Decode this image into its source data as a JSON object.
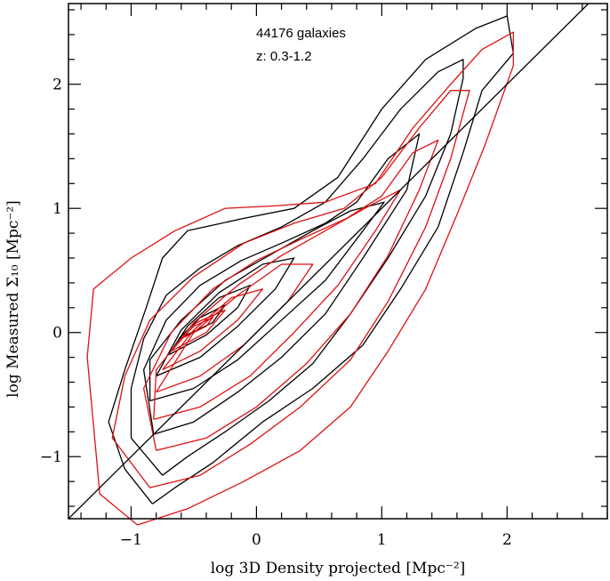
{
  "chart_data": {
    "type": "contour",
    "title": "",
    "xlabel": "log 3D Density projected [Mpc⁻²]",
    "ylabel": "log Measured Σ₁₀ [Mpc⁻²]",
    "xlim": [
      -1.5,
      2.8
    ],
    "ylim": [
      -1.5,
      2.65
    ],
    "x_ticks": [
      -1,
      0,
      1,
      2
    ],
    "y_ticks": [
      -1,
      0,
      1,
      2
    ],
    "x_tick_labels": [
      "−1",
      "0",
      "1",
      "2"
    ],
    "y_tick_labels": [
      "−1",
      "0",
      "1",
      "2"
    ],
    "annotations": [
      "44176 galaxies",
      "z: 0.3-1.2"
    ],
    "reference_line": {
      "name": "one-to-one",
      "points": [
        [
          -1.5,
          -1.5
        ],
        [
          2.8,
          2.8
        ]
      ],
      "color": "#000000"
    },
    "colors": {
      "black": "#000000",
      "red": "#dd1111"
    },
    "series": [
      {
        "name": "black level 1",
        "color": "#000000",
        "points": [
          [
            -0.83,
            -1.38
          ],
          [
            -0.65,
            -1.25
          ],
          [
            -0.35,
            -1.05
          ],
          [
            0.05,
            -0.72
          ],
          [
            0.45,
            -0.45
          ],
          [
            0.85,
            -0.1
          ],
          [
            1.15,
            0.35
          ],
          [
            1.45,
            0.85
          ],
          [
            1.65,
            1.45
          ],
          [
            1.8,
            1.95
          ],
          [
            2.05,
            2.25
          ],
          [
            2.0,
            2.55
          ],
          [
            1.75,
            2.45
          ],
          [
            1.35,
            2.2
          ],
          [
            1.0,
            1.8
          ],
          [
            0.65,
            1.25
          ],
          [
            0.3,
            1.0
          ],
          [
            -0.1,
            0.92
          ],
          [
            -0.55,
            0.82
          ],
          [
            -0.75,
            0.6
          ],
          [
            -0.88,
            0.2
          ],
          [
            -1.05,
            -0.3
          ],
          [
            -1.18,
            -0.72
          ],
          [
            -1.05,
            -1.1
          ],
          [
            -0.83,
            -1.38
          ]
        ]
      },
      {
        "name": "black level 2",
        "color": "#000000",
        "points": [
          [
            -0.75,
            -1.15
          ],
          [
            -0.55,
            -1.0
          ],
          [
            -0.25,
            -0.8
          ],
          [
            0.1,
            -0.55
          ],
          [
            0.45,
            -0.25
          ],
          [
            0.75,
            0.15
          ],
          [
            1.05,
            0.6
          ],
          [
            1.35,
            1.1
          ],
          [
            1.55,
            1.6
          ],
          [
            1.65,
            2.05
          ],
          [
            1.65,
            2.2
          ],
          [
            1.45,
            2.1
          ],
          [
            1.15,
            1.8
          ],
          [
            0.85,
            1.4
          ],
          [
            0.55,
            1.05
          ],
          [
            0.2,
            0.85
          ],
          [
            -0.15,
            0.7
          ],
          [
            -0.45,
            0.52
          ],
          [
            -0.72,
            0.3
          ],
          [
            -0.9,
            -0.05
          ],
          [
            -1.0,
            -0.45
          ],
          [
            -1.0,
            -0.85
          ],
          [
            -0.75,
            -1.15
          ]
        ]
      },
      {
        "name": "black level 3",
        "color": "#000000",
        "points": [
          [
            -0.82,
            -0.82
          ],
          [
            -0.5,
            -0.72
          ],
          [
            -0.15,
            -0.48
          ],
          [
            0.2,
            -0.2
          ],
          [
            0.55,
            0.15
          ],
          [
            0.85,
            0.6
          ],
          [
            1.2,
            1.15
          ],
          [
            1.3,
            1.6
          ],
          [
            1.05,
            1.4
          ],
          [
            0.8,
            1.05
          ],
          [
            0.55,
            0.88
          ],
          [
            0.2,
            0.72
          ],
          [
            -0.12,
            0.58
          ],
          [
            -0.45,
            0.38
          ],
          [
            -0.72,
            0.1
          ],
          [
            -0.9,
            -0.3
          ],
          [
            -0.82,
            -0.82
          ]
        ]
      },
      {
        "name": "black level 4",
        "color": "#000000",
        "points": [
          [
            -0.85,
            -0.55
          ],
          [
            -0.5,
            -0.45
          ],
          [
            -0.15,
            -0.22
          ],
          [
            0.2,
            0.1
          ],
          [
            0.55,
            0.42
          ],
          [
            0.85,
            0.82
          ],
          [
            1.02,
            1.05
          ],
          [
            0.75,
            0.98
          ],
          [
            0.45,
            0.82
          ],
          [
            0.1,
            0.62
          ],
          [
            -0.25,
            0.42
          ],
          [
            -0.6,
            0.1
          ],
          [
            -0.85,
            -0.22
          ],
          [
            -0.85,
            -0.55
          ]
        ]
      },
      {
        "name": "black level 5",
        "color": "#000000",
        "points": [
          [
            -0.8,
            -0.35
          ],
          [
            -0.45,
            -0.2
          ],
          [
            -0.15,
            0.05
          ],
          [
            0.15,
            0.35
          ],
          [
            0.3,
            0.6
          ],
          [
            0.05,
            0.55
          ],
          [
            -0.3,
            0.32
          ],
          [
            -0.6,
            0.02
          ],
          [
            -0.8,
            -0.35
          ]
        ]
      },
      {
        "name": "black level 6",
        "color": "#000000",
        "points": [
          [
            -0.7,
            -0.18
          ],
          [
            -0.4,
            -0.02
          ],
          [
            -0.15,
            0.2
          ],
          [
            -0.05,
            0.38
          ],
          [
            -0.3,
            0.28
          ],
          [
            -0.55,
            0.05
          ],
          [
            -0.7,
            -0.18
          ]
        ]
      },
      {
        "name": "black level 7",
        "color": "#000000",
        "points": [
          [
            -0.62,
            -0.05
          ],
          [
            -0.35,
            0.08
          ],
          [
            -0.25,
            0.22
          ],
          [
            -0.45,
            0.12
          ],
          [
            -0.62,
            -0.05
          ]
        ]
      },
      {
        "name": "red level 1",
        "color": "#dd1111",
        "points": [
          [
            -0.95,
            -1.55
          ],
          [
            -0.55,
            -1.42
          ],
          [
            -0.1,
            -1.2
          ],
          [
            0.35,
            -0.95
          ],
          [
            0.75,
            -0.6
          ],
          [
            1.05,
            -0.15
          ],
          [
            1.35,
            0.35
          ],
          [
            1.6,
            0.95
          ],
          [
            1.82,
            1.5
          ],
          [
            2.05,
            2.15
          ],
          [
            2.05,
            2.42
          ],
          [
            1.8,
            2.28
          ],
          [
            1.55,
            2.0
          ],
          [
            1.25,
            1.65
          ],
          [
            0.95,
            1.2
          ],
          [
            0.55,
            1.05
          ],
          [
            0.15,
            1.02
          ],
          [
            -0.25,
            1.0
          ],
          [
            -0.65,
            0.82
          ],
          [
            -1.0,
            0.6
          ],
          [
            -1.3,
            0.35
          ],
          [
            -1.35,
            -0.2
          ],
          [
            -1.3,
            -0.75
          ],
          [
            -1.25,
            -1.3
          ],
          [
            -0.95,
            -1.55
          ]
        ]
      },
      {
        "name": "red level 2",
        "color": "#dd1111",
        "points": [
          [
            -0.85,
            -1.25
          ],
          [
            -0.45,
            -1.15
          ],
          [
            -0.05,
            -0.9
          ],
          [
            0.35,
            -0.6
          ],
          [
            0.75,
            -0.22
          ],
          [
            1.05,
            0.25
          ],
          [
            1.35,
            0.85
          ],
          [
            1.55,
            1.4
          ],
          [
            1.7,
            1.95
          ],
          [
            1.55,
            1.95
          ],
          [
            1.3,
            1.65
          ],
          [
            1.0,
            1.25
          ],
          [
            0.7,
            1.0
          ],
          [
            0.3,
            0.88
          ],
          [
            -0.1,
            0.72
          ],
          [
            -0.5,
            0.45
          ],
          [
            -0.85,
            0.1
          ],
          [
            -1.05,
            -0.35
          ],
          [
            -1.15,
            -0.85
          ],
          [
            -0.85,
            -1.25
          ]
        ]
      },
      {
        "name": "red level 3",
        "color": "#dd1111",
        "points": [
          [
            -0.8,
            -0.95
          ],
          [
            -0.4,
            -0.85
          ],
          [
            0.0,
            -0.6
          ],
          [
            0.4,
            -0.25
          ],
          [
            0.75,
            0.15
          ],
          [
            1.05,
            0.62
          ],
          [
            1.3,
            1.15
          ],
          [
            1.45,
            1.55
          ],
          [
            1.25,
            1.45
          ],
          [
            1.0,
            1.1
          ],
          [
            0.72,
            0.92
          ],
          [
            0.35,
            0.75
          ],
          [
            0.0,
            0.58
          ],
          [
            -0.35,
            0.35
          ],
          [
            -0.68,
            0.0
          ],
          [
            -0.9,
            -0.45
          ],
          [
            -0.8,
            -0.95
          ]
        ]
      },
      {
        "name": "red level 4",
        "color": "#dd1111",
        "points": [
          [
            -0.82,
            -0.7
          ],
          [
            -0.45,
            -0.6
          ],
          [
            -0.05,
            -0.35
          ],
          [
            0.3,
            0.0
          ],
          [
            0.65,
            0.38
          ],
          [
            0.95,
            0.82
          ],
          [
            1.15,
            1.15
          ],
          [
            0.9,
            1.02
          ],
          [
            0.55,
            0.82
          ],
          [
            0.2,
            0.62
          ],
          [
            -0.15,
            0.38
          ],
          [
            -0.5,
            0.08
          ],
          [
            -0.8,
            -0.3
          ],
          [
            -0.82,
            -0.7
          ]
        ]
      },
      {
        "name": "red level 5",
        "color": "#dd1111",
        "points": [
          [
            -0.8,
            -0.48
          ],
          [
            -0.45,
            -0.35
          ],
          [
            -0.1,
            -0.1
          ],
          [
            0.25,
            0.25
          ],
          [
            0.45,
            0.55
          ],
          [
            0.2,
            0.55
          ],
          [
            -0.15,
            0.3
          ],
          [
            -0.5,
            0.0
          ],
          [
            -0.8,
            -0.48
          ]
        ]
      },
      {
        "name": "red level 6",
        "color": "#dd1111",
        "points": [
          [
            -0.75,
            -0.3
          ],
          [
            -0.45,
            -0.15
          ],
          [
            -0.15,
            0.1
          ],
          [
            0.05,
            0.35
          ],
          [
            -0.2,
            0.28
          ],
          [
            -0.5,
            0.02
          ],
          [
            -0.75,
            -0.3
          ]
        ]
      },
      {
        "name": "red level 7",
        "color": "#dd1111",
        "points": [
          [
            -0.68,
            -0.15
          ],
          [
            -0.4,
            0.0
          ],
          [
            -0.25,
            0.18
          ],
          [
            -0.48,
            0.08
          ],
          [
            -0.68,
            -0.15
          ]
        ]
      },
      {
        "name": "red level 8",
        "color": "#dd1111",
        "points": [
          [
            -0.6,
            -0.05
          ],
          [
            -0.4,
            0.05
          ],
          [
            -0.35,
            0.12
          ],
          [
            -0.5,
            0.05
          ],
          [
            -0.6,
            -0.05
          ]
        ]
      }
    ]
  }
}
